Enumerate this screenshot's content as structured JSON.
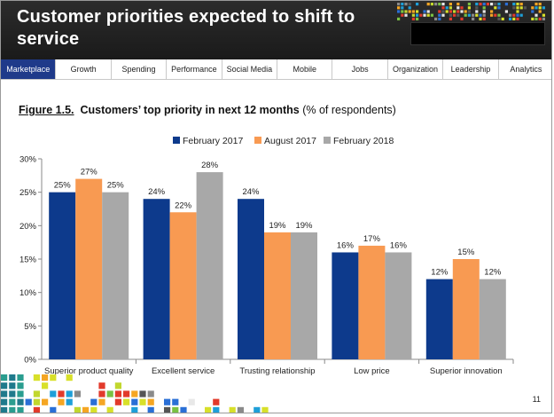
{
  "header": {
    "title": "Customer priorities expected to shift to service"
  },
  "nav": {
    "tabs": [
      "Marketplace",
      "Growth",
      "Spending",
      "Performance",
      "Social Media",
      "Mobile",
      "Jobs",
      "Organization",
      "Leadership",
      "Analytics"
    ],
    "active_index": 0
  },
  "figure": {
    "lead": "Figure 1.5.",
    "title": "Customers’ top priority in next 12 months",
    "unit": "(% of respondents)"
  },
  "page_number": "11",
  "chart_data": {
    "type": "bar",
    "categories": [
      "Superior product quality",
      "Excellent service",
      "Trusting relationship",
      "Low price",
      "Superior innovation"
    ],
    "series": [
      {
        "name": "February 2017",
        "color": "#0d3a8c",
        "values": [
          25,
          24,
          24,
          16,
          12
        ],
        "labels": [
          "25%",
          "24%",
          "24%",
          "16%",
          "12%"
        ]
      },
      {
        "name": "August 2017",
        "color": "#f89a52",
        "values": [
          27,
          22,
          19,
          17,
          15
        ],
        "labels": [
          "27%",
          "22%",
          "19%",
          "17%",
          "15%"
        ]
      },
      {
        "name": "February 2018",
        "color": "#a8a8a8",
        "values": [
          25,
          28,
          19,
          16,
          12
        ],
        "labels": [
          "25%",
          "28%",
          "19%",
          "16%",
          "12%"
        ]
      }
    ],
    "ylim": [
      0,
      30
    ],
    "yticks": [
      0,
      5,
      10,
      15,
      20,
      25,
      30
    ],
    "ytick_labels": [
      "0%",
      "5%",
      "10%",
      "15%",
      "20%",
      "25%",
      "30%"
    ],
    "legend_position": "top-center",
    "grid": false
  }
}
